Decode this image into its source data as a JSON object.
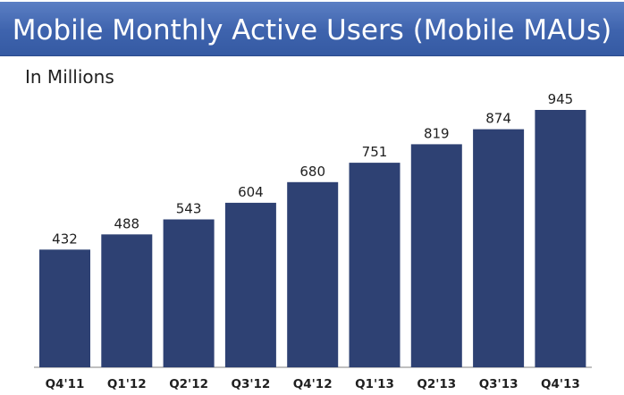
{
  "header": {
    "title": "Mobile Monthly Active Users (Mobile MAUs)",
    "subtitle": "In Millions"
  },
  "colors": {
    "title_band": "#3e63ad",
    "bar": "#2e4173",
    "text": "#1f1f1f"
  },
  "chart_data": {
    "type": "bar",
    "title": "Mobile Monthly Active Users (Mobile MAUs)",
    "subtitle": "In Millions",
    "categories": [
      "Q4'11",
      "Q1'12",
      "Q2'12",
      "Q3'12",
      "Q4'12",
      "Q1'13",
      "Q2'13",
      "Q3'13",
      "Q4'13"
    ],
    "values": [
      432,
      488,
      543,
      604,
      680,
      751,
      819,
      874,
      945
    ],
    "data_labels": [
      "432",
      "488",
      "543",
      "604",
      "680",
      "751",
      "819",
      "874",
      "945"
    ],
    "ylim": [
      0,
      945
    ],
    "grid": false,
    "legend": "none"
  }
}
